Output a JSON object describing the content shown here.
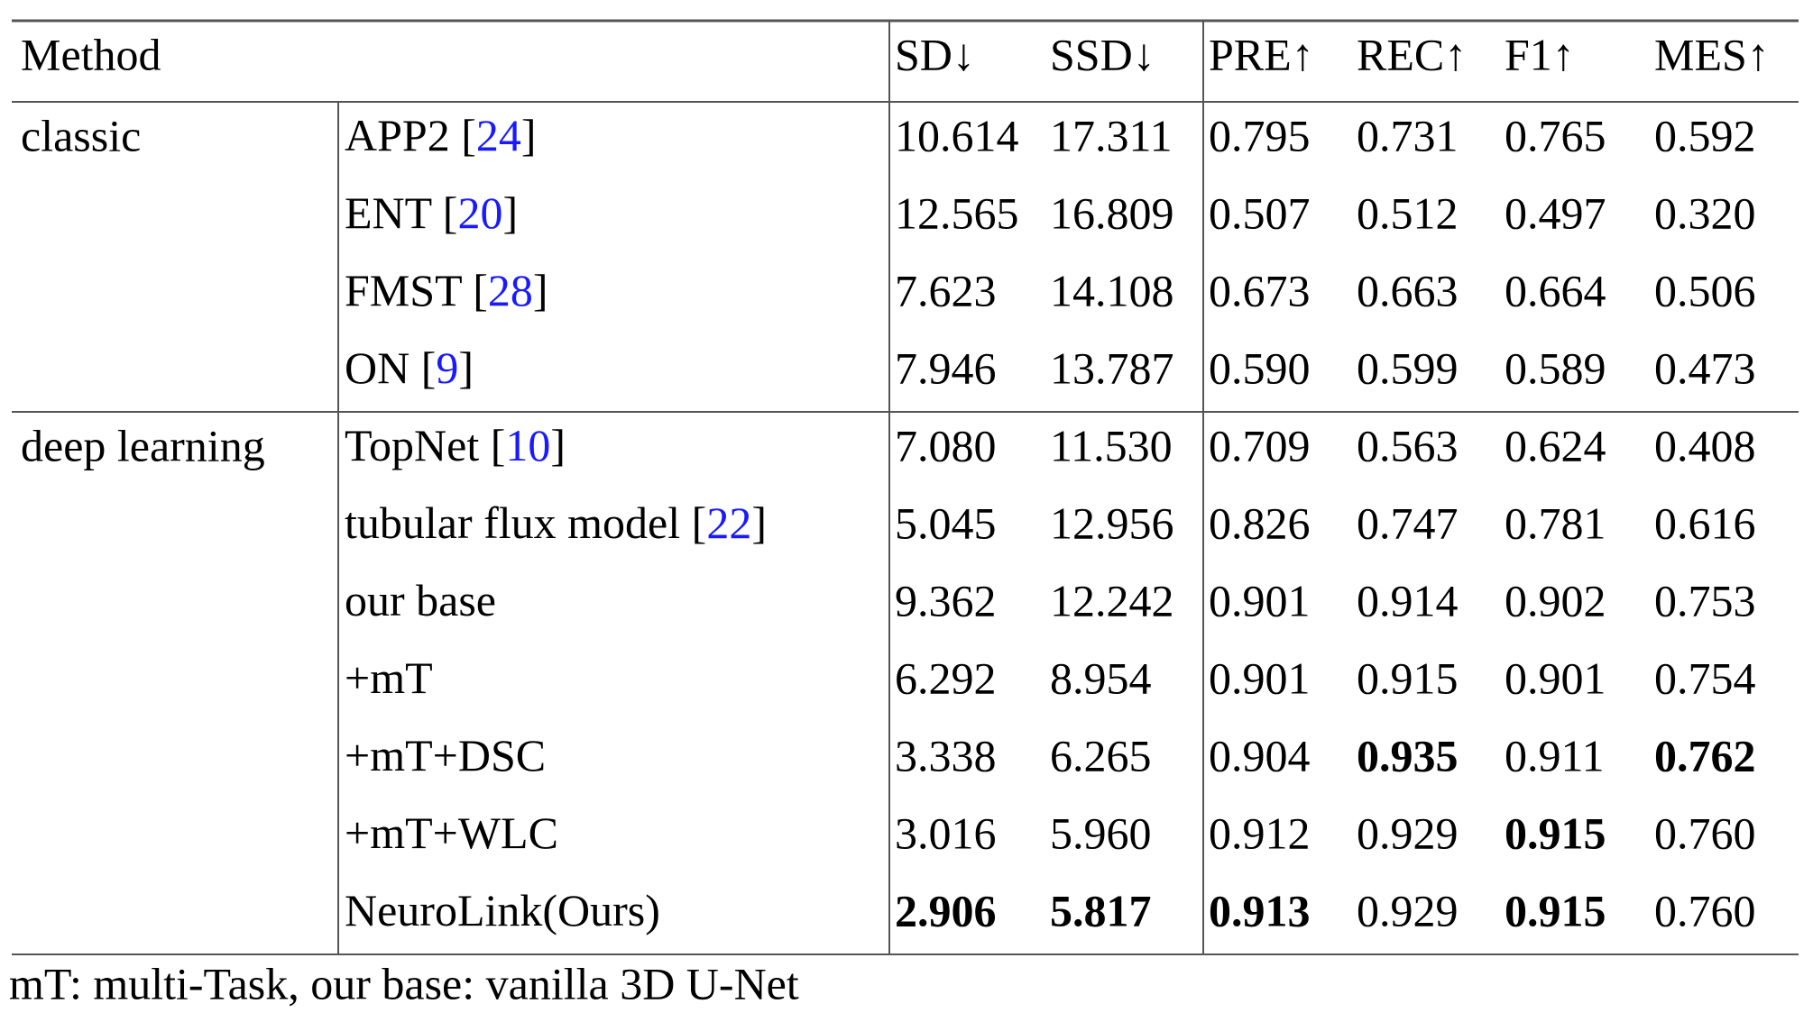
{
  "table": {
    "header": [
      "Method",
      "SD↓",
      "SSD↓",
      "PRE↑",
      "REC↑",
      "F1↑",
      "MES↑"
    ],
    "groups": [
      {
        "name": "classic",
        "rows": [
          {
            "method": "APP2 ",
            "ref": "[24]",
            "values": [
              "10.614",
              "17.311",
              "0.795",
              "0.731",
              "0.765",
              "0.592"
            ],
            "bold": []
          },
          {
            "method": "ENT ",
            "ref": "[20]",
            "values": [
              "12.565",
              "16.809",
              "0.507",
              "0.512",
              "0.497",
              "0.320"
            ],
            "bold": []
          },
          {
            "method": "FMST ",
            "ref": "[28]",
            "values": [
              "7.623",
              "14.108",
              "0.673",
              "0.663",
              "0.664",
              "0.506"
            ],
            "bold": []
          },
          {
            "method": "ON ",
            "ref": "[9]",
            "values": [
              "7.946",
              "13.787",
              "0.590",
              "0.599",
              "0.589",
              "0.473"
            ],
            "bold": []
          }
        ]
      },
      {
        "name": "deep learning",
        "rows": [
          {
            "method": "TopNet ",
            "ref": "[10]",
            "values": [
              "7.080",
              "11.530",
              "0.709",
              "0.563",
              "0.624",
              "0.408"
            ],
            "bold": []
          },
          {
            "method": "tubular flux model ",
            "ref": "[22]",
            "values": [
              "5.045",
              "12.956",
              "0.826",
              "0.747",
              "0.781",
              "0.616"
            ],
            "bold": []
          },
          {
            "method": "our base",
            "values": [
              "9.362",
              "12.242",
              "0.901",
              "0.914",
              "0.902",
              "0.753"
            ],
            "bold": []
          },
          {
            "method": "+mT",
            "values": [
              "6.292",
              "8.954",
              "0.901",
              "0.915",
              "0.901",
              "0.754"
            ],
            "bold": []
          },
          {
            "method": "+mT+DSC",
            "values": [
              "3.338",
              "6.265",
              "0.904",
              "0.935",
              "0.911",
              "0.762"
            ],
            "bold": [
              3,
              5
            ]
          },
          {
            "method": "+mT+WLC",
            "values": [
              "3.016",
              "5.960",
              "0.912",
              "0.929",
              "0.915",
              "0.760"
            ],
            "bold": [
              4
            ]
          },
          {
            "method": "NeuroLink(Ours)",
            "values": [
              "2.906",
              "5.817",
              "0.913",
              "0.929",
              "0.915",
              "0.760"
            ],
            "bold": [
              0,
              1,
              2,
              4
            ]
          }
        ]
      }
    ],
    "footnote": "mT: multi-Task, our base: vanilla 3D U-Net"
  }
}
